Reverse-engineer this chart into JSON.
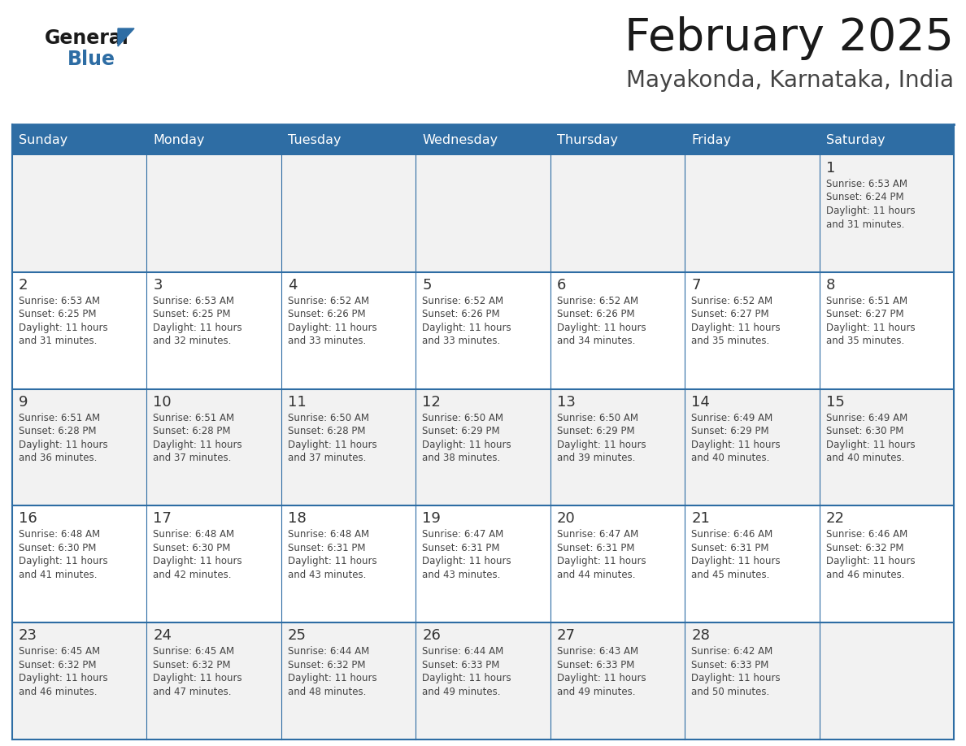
{
  "title": "February 2025",
  "subtitle": "Mayakonda, Karnataka, India",
  "header_bg": "#2E6DA4",
  "header_text_color": "#FFFFFF",
  "row_bg_even": "#F2F2F2",
  "row_bg_odd": "#FFFFFF",
  "border_color": "#2E6DA4",
  "day_names": [
    "Sunday",
    "Monday",
    "Tuesday",
    "Wednesday",
    "Thursday",
    "Friday",
    "Saturday"
  ],
  "title_color": "#1a1a1a",
  "subtitle_color": "#444444",
  "day_num_color": "#333333",
  "detail_color": "#444444",
  "logo_general_color": "#1a1a1a",
  "logo_blue_color": "#2E6DA4",
  "logo_triangle_color": "#2E6DA4",
  "days": [
    {
      "date": 1,
      "col": 6,
      "row": 0,
      "sunrise": "6:53 AM",
      "sunset": "6:24 PM",
      "daylight_hours": 11,
      "daylight_minutes": 31
    },
    {
      "date": 2,
      "col": 0,
      "row": 1,
      "sunrise": "6:53 AM",
      "sunset": "6:25 PM",
      "daylight_hours": 11,
      "daylight_minutes": 31
    },
    {
      "date": 3,
      "col": 1,
      "row": 1,
      "sunrise": "6:53 AM",
      "sunset": "6:25 PM",
      "daylight_hours": 11,
      "daylight_minutes": 32
    },
    {
      "date": 4,
      "col": 2,
      "row": 1,
      "sunrise": "6:52 AM",
      "sunset": "6:26 PM",
      "daylight_hours": 11,
      "daylight_minutes": 33
    },
    {
      "date": 5,
      "col": 3,
      "row": 1,
      "sunrise": "6:52 AM",
      "sunset": "6:26 PM",
      "daylight_hours": 11,
      "daylight_minutes": 33
    },
    {
      "date": 6,
      "col": 4,
      "row": 1,
      "sunrise": "6:52 AM",
      "sunset": "6:26 PM",
      "daylight_hours": 11,
      "daylight_minutes": 34
    },
    {
      "date": 7,
      "col": 5,
      "row": 1,
      "sunrise": "6:52 AM",
      "sunset": "6:27 PM",
      "daylight_hours": 11,
      "daylight_minutes": 35
    },
    {
      "date": 8,
      "col": 6,
      "row": 1,
      "sunrise": "6:51 AM",
      "sunset": "6:27 PM",
      "daylight_hours": 11,
      "daylight_minutes": 35
    },
    {
      "date": 9,
      "col": 0,
      "row": 2,
      "sunrise": "6:51 AM",
      "sunset": "6:28 PM",
      "daylight_hours": 11,
      "daylight_minutes": 36
    },
    {
      "date": 10,
      "col": 1,
      "row": 2,
      "sunrise": "6:51 AM",
      "sunset": "6:28 PM",
      "daylight_hours": 11,
      "daylight_minutes": 37
    },
    {
      "date": 11,
      "col": 2,
      "row": 2,
      "sunrise": "6:50 AM",
      "sunset": "6:28 PM",
      "daylight_hours": 11,
      "daylight_minutes": 37
    },
    {
      "date": 12,
      "col": 3,
      "row": 2,
      "sunrise": "6:50 AM",
      "sunset": "6:29 PM",
      "daylight_hours": 11,
      "daylight_minutes": 38
    },
    {
      "date": 13,
      "col": 4,
      "row": 2,
      "sunrise": "6:50 AM",
      "sunset": "6:29 PM",
      "daylight_hours": 11,
      "daylight_minutes": 39
    },
    {
      "date": 14,
      "col": 5,
      "row": 2,
      "sunrise": "6:49 AM",
      "sunset": "6:29 PM",
      "daylight_hours": 11,
      "daylight_minutes": 40
    },
    {
      "date": 15,
      "col": 6,
      "row": 2,
      "sunrise": "6:49 AM",
      "sunset": "6:30 PM",
      "daylight_hours": 11,
      "daylight_minutes": 40
    },
    {
      "date": 16,
      "col": 0,
      "row": 3,
      "sunrise": "6:48 AM",
      "sunset": "6:30 PM",
      "daylight_hours": 11,
      "daylight_minutes": 41
    },
    {
      "date": 17,
      "col": 1,
      "row": 3,
      "sunrise": "6:48 AM",
      "sunset": "6:30 PM",
      "daylight_hours": 11,
      "daylight_minutes": 42
    },
    {
      "date": 18,
      "col": 2,
      "row": 3,
      "sunrise": "6:48 AM",
      "sunset": "6:31 PM",
      "daylight_hours": 11,
      "daylight_minutes": 43
    },
    {
      "date": 19,
      "col": 3,
      "row": 3,
      "sunrise": "6:47 AM",
      "sunset": "6:31 PM",
      "daylight_hours": 11,
      "daylight_minutes": 43
    },
    {
      "date": 20,
      "col": 4,
      "row": 3,
      "sunrise": "6:47 AM",
      "sunset": "6:31 PM",
      "daylight_hours": 11,
      "daylight_minutes": 44
    },
    {
      "date": 21,
      "col": 5,
      "row": 3,
      "sunrise": "6:46 AM",
      "sunset": "6:31 PM",
      "daylight_hours": 11,
      "daylight_minutes": 45
    },
    {
      "date": 22,
      "col": 6,
      "row": 3,
      "sunrise": "6:46 AM",
      "sunset": "6:32 PM",
      "daylight_hours": 11,
      "daylight_minutes": 46
    },
    {
      "date": 23,
      "col": 0,
      "row": 4,
      "sunrise": "6:45 AM",
      "sunset": "6:32 PM",
      "daylight_hours": 11,
      "daylight_minutes": 46
    },
    {
      "date": 24,
      "col": 1,
      "row": 4,
      "sunrise": "6:45 AM",
      "sunset": "6:32 PM",
      "daylight_hours": 11,
      "daylight_minutes": 47
    },
    {
      "date": 25,
      "col": 2,
      "row": 4,
      "sunrise": "6:44 AM",
      "sunset": "6:32 PM",
      "daylight_hours": 11,
      "daylight_minutes": 48
    },
    {
      "date": 26,
      "col": 3,
      "row": 4,
      "sunrise": "6:44 AM",
      "sunset": "6:33 PM",
      "daylight_hours": 11,
      "daylight_minutes": 49
    },
    {
      "date": 27,
      "col": 4,
      "row": 4,
      "sunrise": "6:43 AM",
      "sunset": "6:33 PM",
      "daylight_hours": 11,
      "daylight_minutes": 49
    },
    {
      "date": 28,
      "col": 5,
      "row": 4,
      "sunrise": "6:42 AM",
      "sunset": "6:33 PM",
      "daylight_hours": 11,
      "daylight_minutes": 50
    }
  ]
}
